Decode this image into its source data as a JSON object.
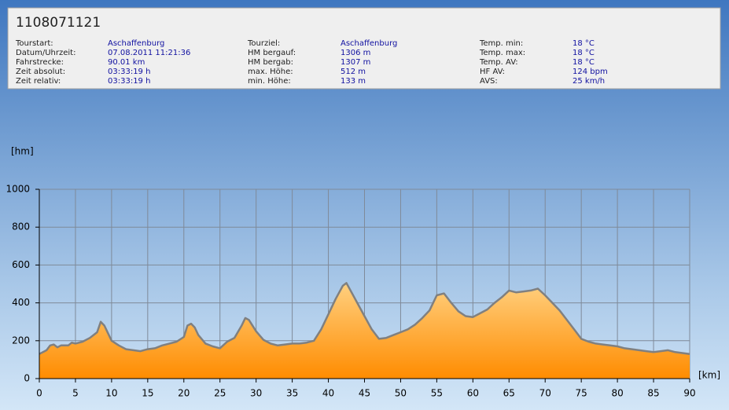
{
  "info": {
    "title": "1108071121",
    "columns": [
      [
        {
          "label": "Tourstart:",
          "value": "Aschaffenburg"
        },
        {
          "label": "Datum/Uhrzeit:",
          "value": "07.08.2011 11:21:36"
        },
        {
          "label": "Fahrstrecke:",
          "value": "90.01 km"
        },
        {
          "label": "Zeit absolut:",
          "value": "03:33:19 h"
        },
        {
          "label": "Zeit relativ:",
          "value": "03:33:19 h"
        }
      ],
      [
        {
          "label": "Tourziel:",
          "value": "Aschaffenburg"
        },
        {
          "label": "HM bergauf:",
          "value": "1306 m"
        },
        {
          "label": "HM bergab:",
          "value": "1307 m"
        },
        {
          "label": "max. Höhe:",
          "value": "512 m"
        },
        {
          "label": "min. Höhe:",
          "value": "133 m"
        }
      ],
      [
        {
          "label": "Temp. min:",
          "value": "18 °C"
        },
        {
          "label": "Temp. max:",
          "value": "18 °C"
        },
        {
          "label": "Temp. AV:",
          "value": "18 °C"
        },
        {
          "label": "HF AV:",
          "value": "124 bpm"
        },
        {
          "label": "AVS:",
          "value": "25 km/h"
        }
      ]
    ]
  },
  "chart_data": {
    "type": "area",
    "y_label": "[hm]",
    "x_label": "[km]",
    "x": [
      0,
      1,
      1.5,
      2,
      2.5,
      3,
      4,
      4.5,
      5,
      6,
      7,
      7.5,
      8,
      8.5,
      9,
      9.5,
      10,
      11,
      12,
      13,
      14,
      15,
      16,
      17,
      18,
      19,
      20,
      20.5,
      21,
      21.5,
      22,
      23,
      24,
      25,
      26,
      27,
      28,
      28.5,
      29,
      30,
      31,
      32,
      33,
      34,
      35,
      36,
      37,
      38,
      39,
      40,
      41,
      42,
      42.5,
      43,
      44,
      45,
      46,
      47,
      48,
      49,
      50,
      51,
      52,
      53,
      54,
      55,
      56,
      57,
      58,
      59,
      60,
      61,
      62,
      63,
      64,
      65,
      66,
      67,
      68,
      69,
      70,
      71,
      72,
      73,
      74,
      75,
      76,
      77,
      78,
      79,
      80,
      81,
      82,
      83,
      84,
      85,
      86,
      87,
      88,
      89,
      90
    ],
    "values": [
      130,
      150,
      175,
      180,
      165,
      175,
      175,
      190,
      185,
      195,
      215,
      230,
      245,
      300,
      280,
      240,
      200,
      175,
      155,
      150,
      145,
      155,
      160,
      175,
      185,
      195,
      220,
      280,
      290,
      270,
      230,
      185,
      170,
      160,
      195,
      215,
      280,
      320,
      310,
      250,
      205,
      185,
      175,
      180,
      185,
      185,
      190,
      200,
      260,
      340,
      420,
      490,
      505,
      470,
      400,
      330,
      260,
      210,
      215,
      230,
      245,
      260,
      285,
      320,
      360,
      440,
      450,
      400,
      355,
      330,
      325,
      345,
      365,
      400,
      430,
      465,
      455,
      460,
      465,
      475,
      440,
      400,
      360,
      310,
      260,
      210,
      195,
      185,
      180,
      175,
      170,
      160,
      155,
      150,
      145,
      140,
      145,
      150,
      140,
      135,
      130
    ],
    "color": "#ff9a10",
    "line_color": "#808080",
    "xlim": [
      0,
      90
    ],
    "xticks": [
      0,
      5,
      10,
      15,
      20,
      25,
      30,
      35,
      40,
      45,
      50,
      55,
      60,
      65,
      70,
      75,
      80,
      85,
      90
    ],
    "ylim": [
      0,
      1000
    ],
    "yticks": [
      0,
      200,
      400,
      600,
      800,
      1000
    ],
    "grid": true
  }
}
